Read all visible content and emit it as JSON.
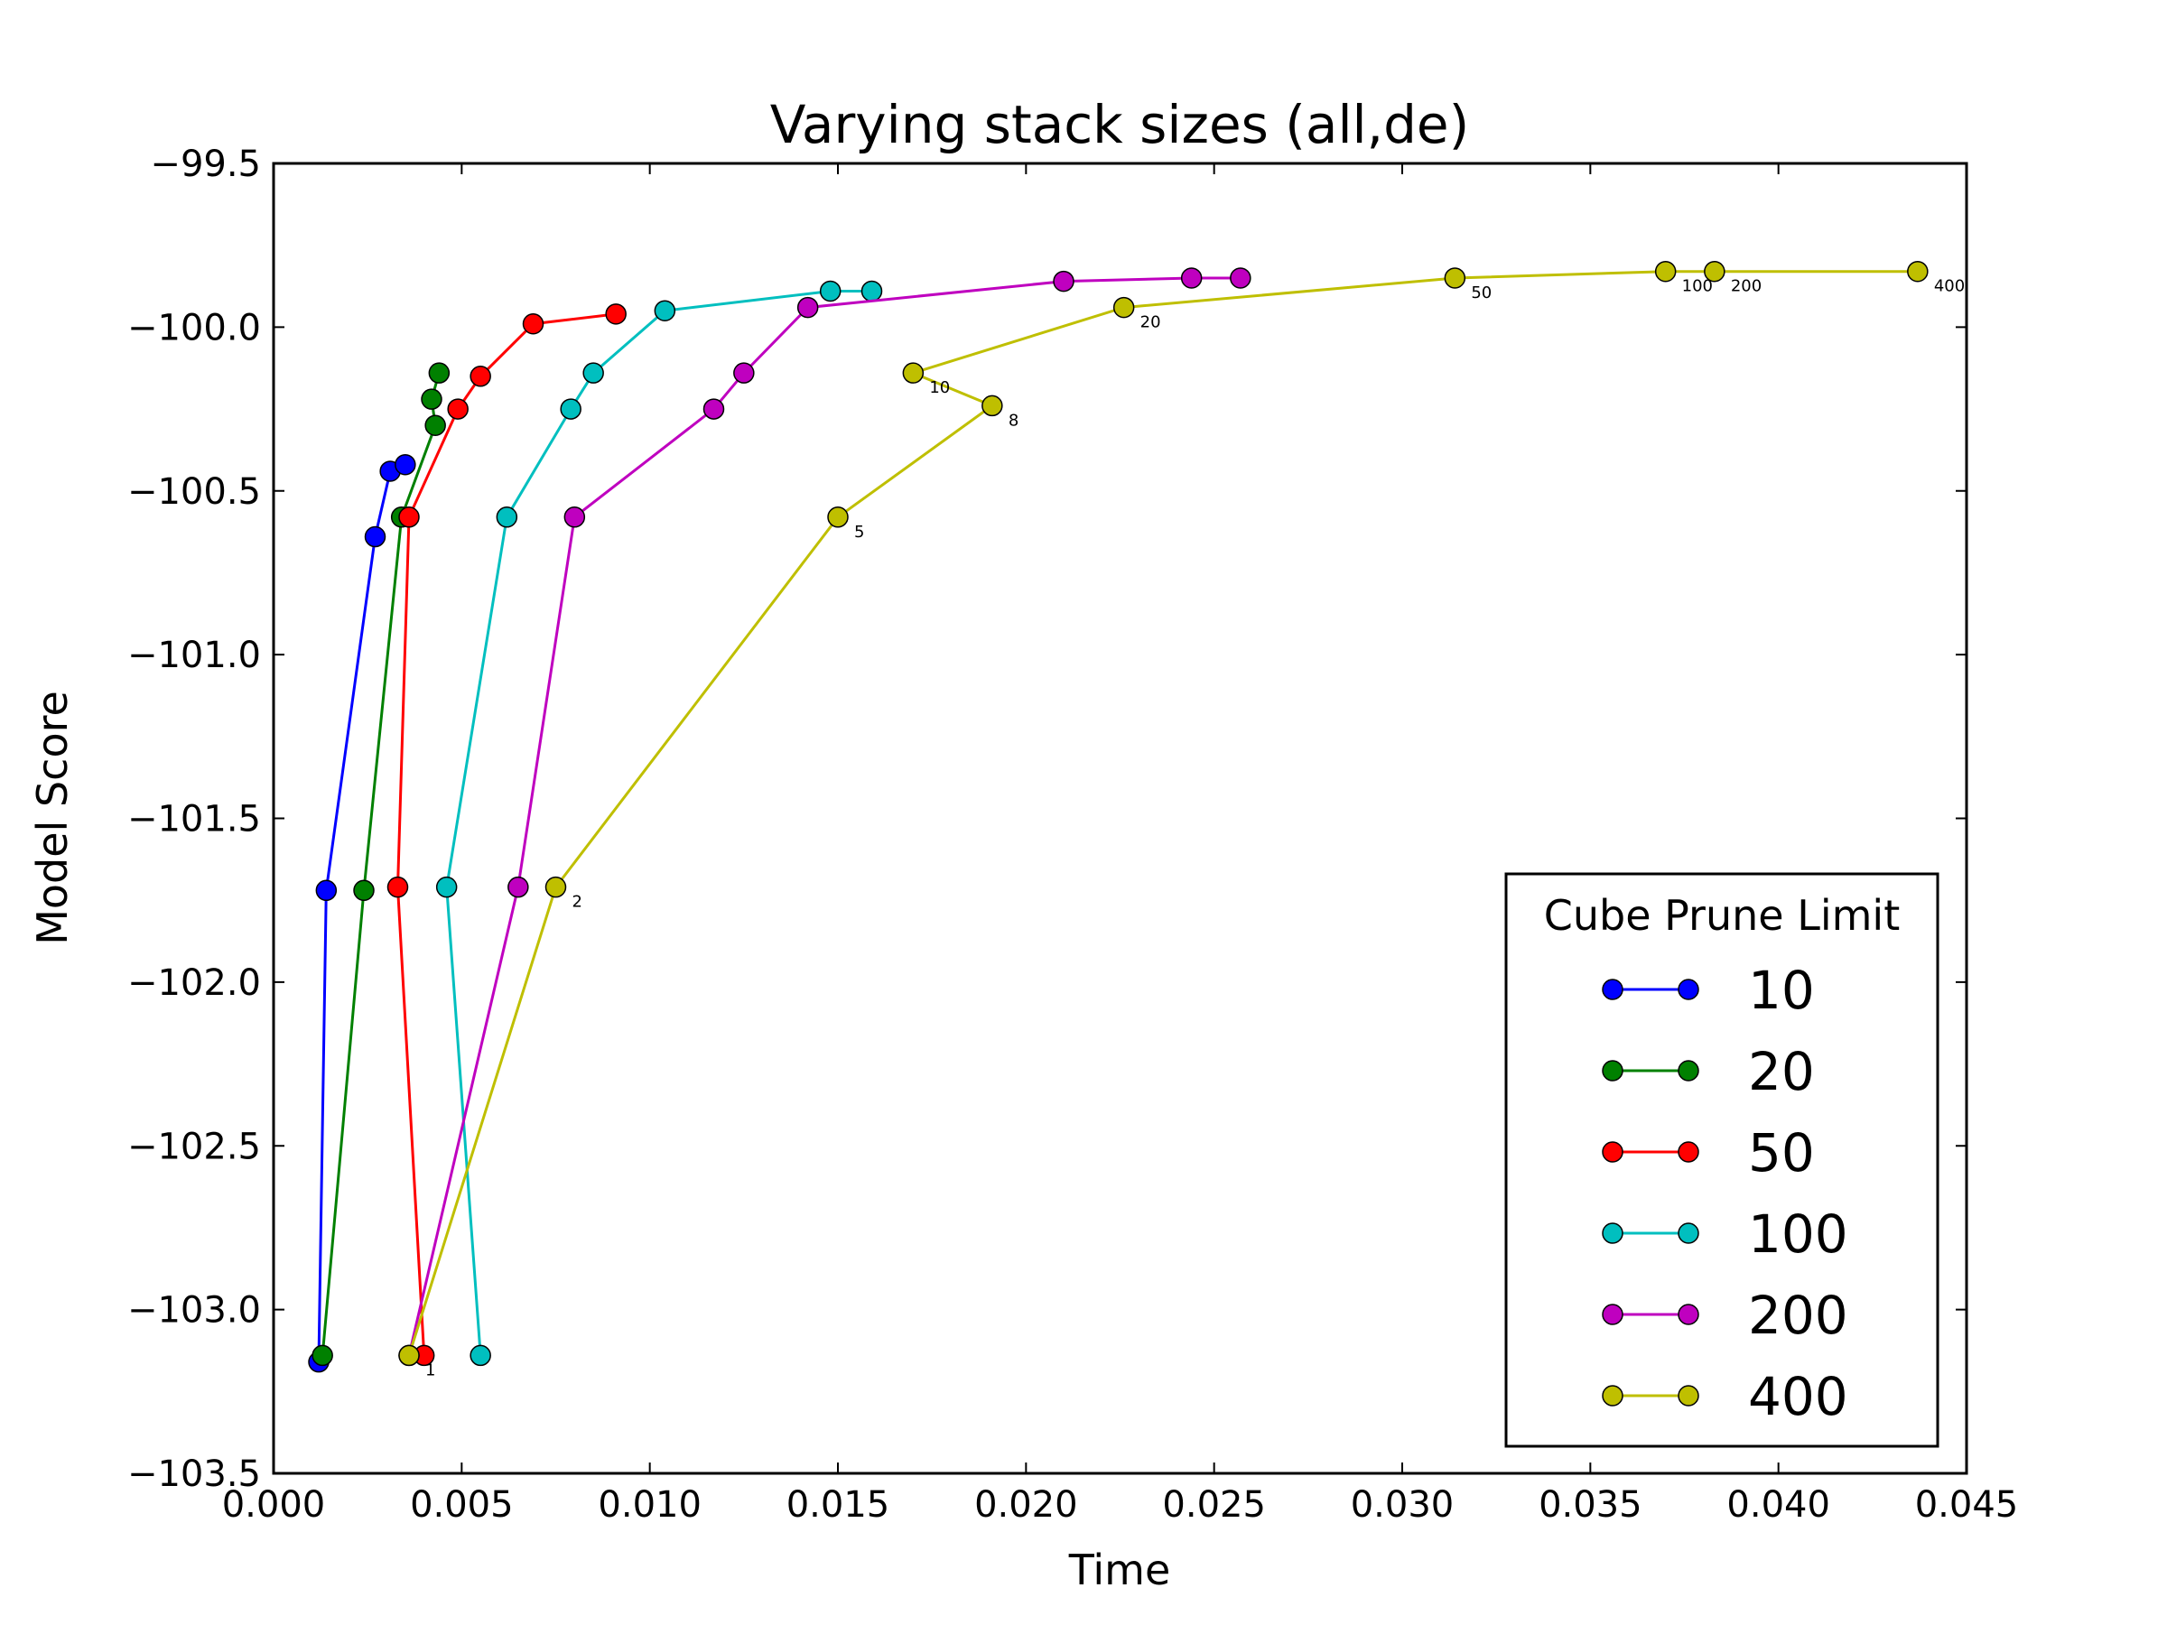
{
  "chart_data": {
    "type": "line",
    "title": "Varying stack sizes (all,de)",
    "xlabel": "Time",
    "ylabel": "Model Score",
    "xlim": [
      0.0,
      0.045
    ],
    "ylim": [
      -103.5,
      -99.5
    ],
    "xticks": [
      "0.000",
      "0.005",
      "0.010",
      "0.015",
      "0.020",
      "0.025",
      "0.030",
      "0.035",
      "0.040",
      "0.045"
    ],
    "yticks": [
      "−99.5",
      "−100.0",
      "−100.5",
      "−101.0",
      "−101.5",
      "−102.0",
      "−102.5",
      "−103.0",
      "−103.5"
    ],
    "grid": false,
    "legend": {
      "title": "Cube Prune Limit",
      "placement": "lower-right"
    },
    "series": [
      {
        "name": "10",
        "color": "#0000ff",
        "x": [
          0.0012,
          0.0014,
          0.0027,
          0.0031,
          0.0035
        ],
        "y": [
          -103.16,
          -101.72,
          -100.64,
          -100.44,
          -100.42
        ]
      },
      {
        "name": "20",
        "color": "#008000",
        "x": [
          0.0013,
          0.0024,
          0.0034,
          0.0043,
          0.0042,
          0.0044
        ],
        "y": [
          -103.14,
          -101.72,
          -100.58,
          -100.3,
          -100.22,
          -100.14
        ]
      },
      {
        "name": "50",
        "color": "#ff0000",
        "x": [
          0.004,
          0.0033,
          0.0036,
          0.0049,
          0.0055,
          0.0069,
          0.0091
        ],
        "y": [
          -103.14,
          -101.71,
          -100.58,
          -100.25,
          -100.15,
          -99.99,
          -99.96
        ]
      },
      {
        "name": "100",
        "color": "#00bfbf",
        "x": [
          0.0055,
          0.0046,
          0.0062,
          0.0079,
          0.0085,
          0.0104,
          0.0148,
          0.0159
        ],
        "y": [
          -103.14,
          -101.71,
          -100.58,
          -100.25,
          -100.14,
          -99.95,
          -99.89,
          -99.89
        ]
      },
      {
        "name": "200",
        "color": "#bf00bf",
        "x": [
          0.0036,
          0.0065,
          0.008,
          0.0117,
          0.0125,
          0.0142,
          0.021,
          0.0244,
          0.0257
        ],
        "y": [
          -103.14,
          -101.71,
          -100.58,
          -100.25,
          -100.14,
          -99.94,
          -99.86,
          -99.85,
          -99.85
        ]
      },
      {
        "name": "400",
        "color": "#bfbf00",
        "x": [
          0.0036,
          0.0075,
          0.015,
          0.0191,
          0.017,
          0.0226,
          0.0314,
          0.037,
          0.0383,
          0.0437
        ],
        "y": [
          -103.14,
          -101.71,
          -100.58,
          -100.24,
          -100.14,
          -99.94,
          -99.85,
          -99.83,
          -99.83,
          -99.83
        ],
        "point_labels": [
          "1",
          "2",
          "5",
          "8",
          "10",
          "20",
          "50",
          "100",
          "200",
          "400"
        ]
      }
    ]
  }
}
